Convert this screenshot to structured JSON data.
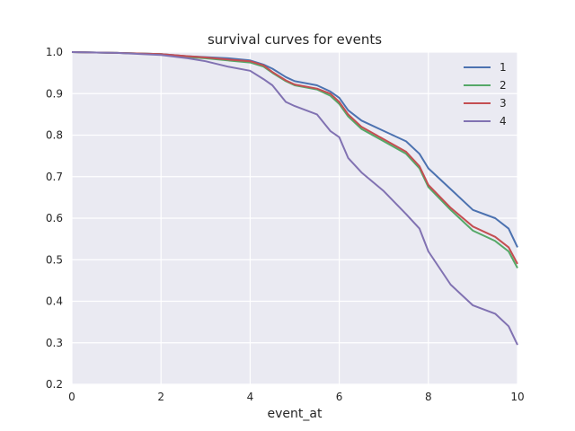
{
  "chart_data": {
    "type": "line",
    "title": "survival curves for events",
    "xlabel": "event_at",
    "ylabel": "",
    "xlim": [
      0,
      10
    ],
    "ylim": [
      0.2,
      1.0
    ],
    "xticks": [
      "0",
      "2",
      "4",
      "6",
      "8",
      "10"
    ],
    "yticks": [
      "0.2",
      "0.3",
      "0.4",
      "0.5",
      "0.6",
      "0.7",
      "0.8",
      "0.9",
      "1.0"
    ],
    "grid": true,
    "background": "#eaeaf2",
    "legend_position": "top-right",
    "series": [
      {
        "name": "1",
        "color": "#4c72b0",
        "x": [
          0,
          1,
          2,
          2.6,
          3.0,
          3.5,
          4.0,
          4.3,
          4.5,
          4.8,
          5.0,
          5.5,
          5.8,
          6.0,
          6.2,
          6.5,
          7.0,
          7.5,
          7.8,
          8.0,
          8.5,
          9.0,
          9.5,
          9.8,
          10.0
        ],
        "y": [
          1.0,
          0.998,
          0.995,
          0.99,
          0.988,
          0.985,
          0.98,
          0.97,
          0.96,
          0.94,
          0.93,
          0.92,
          0.905,
          0.89,
          0.86,
          0.835,
          0.81,
          0.785,
          0.755,
          0.72,
          0.67,
          0.62,
          0.6,
          0.575,
          0.53
        ]
      },
      {
        "name": "2",
        "color": "#55a868",
        "x": [
          0,
          1,
          2,
          2.6,
          3.0,
          3.5,
          4.0,
          4.3,
          4.5,
          4.8,
          5.0,
          5.5,
          5.8,
          6.0,
          6.2,
          6.5,
          7.0,
          7.5,
          7.8,
          8.0,
          8.5,
          9.0,
          9.5,
          9.8,
          10.0
        ],
        "y": [
          1.0,
          0.998,
          0.995,
          0.988,
          0.985,
          0.98,
          0.975,
          0.965,
          0.95,
          0.93,
          0.92,
          0.91,
          0.895,
          0.875,
          0.845,
          0.815,
          0.785,
          0.755,
          0.72,
          0.675,
          0.62,
          0.57,
          0.545,
          0.52,
          0.48
        ]
      },
      {
        "name": "3",
        "color": "#c44e52",
        "x": [
          0,
          1,
          2,
          2.6,
          3.0,
          3.5,
          4.0,
          4.3,
          4.5,
          4.8,
          5.0,
          5.5,
          5.8,
          6.0,
          6.2,
          6.5,
          7.0,
          7.5,
          7.8,
          8.0,
          8.5,
          9.0,
          9.5,
          9.8,
          10.0
        ],
        "y": [
          1.0,
          0.998,
          0.995,
          0.99,
          0.987,
          0.982,
          0.978,
          0.968,
          0.952,
          0.932,
          0.922,
          0.912,
          0.9,
          0.88,
          0.85,
          0.82,
          0.79,
          0.76,
          0.725,
          0.68,
          0.625,
          0.58,
          0.555,
          0.53,
          0.49
        ]
      },
      {
        "name": "4",
        "color": "#8172b2",
        "x": [
          0,
          1,
          2,
          2.6,
          3.0,
          3.5,
          4.0,
          4.3,
          4.5,
          4.8,
          5.0,
          5.5,
          5.8,
          6.0,
          6.2,
          6.5,
          7.0,
          7.5,
          7.8,
          8.0,
          8.5,
          9.0,
          9.5,
          9.8,
          10.0
        ],
        "y": [
          1.0,
          0.998,
          0.993,
          0.985,
          0.978,
          0.965,
          0.955,
          0.935,
          0.92,
          0.88,
          0.87,
          0.85,
          0.81,
          0.795,
          0.745,
          0.71,
          0.665,
          0.61,
          0.575,
          0.52,
          0.44,
          0.39,
          0.37,
          0.34,
          0.295
        ]
      }
    ]
  }
}
